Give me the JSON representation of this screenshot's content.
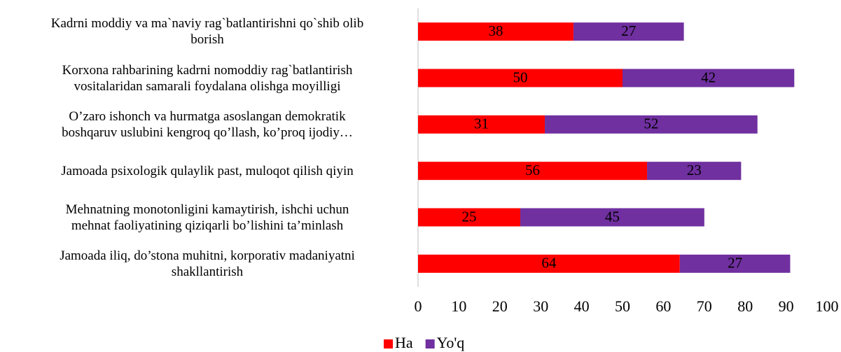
{
  "chart_data": {
    "type": "bar",
    "orientation": "horizontal",
    "stacked": true,
    "categories": [
      "Kadrni moddiy va ma`naviy rag`batlantirishni qo`shib olib\nborish",
      "Korxona rahbarining kadrni nomoddiy rag`batlantirish\nvositalaridan samarali foydalana olishga moyilligi",
      "O’zaro ishonch va hurmatga asoslangan demokratik\nboshqaruv uslubini kengroq qo’llash, ko’proq ijodiy…",
      "Jamoada psixologik qulaylik past, muloqot qilish qiyin",
      "Mehnatning monotonligini kamaytirish, ishchi uchun\nmehnat faoliyatining  qiziqarli bo’lishini ta’minlash",
      "Jamoada iliq, do’stona muhitni, korporativ madaniyatni\nshakllantirish"
    ],
    "series": [
      {
        "name": "Ha",
        "color": "#ff0000",
        "values": [
          38,
          50,
          31,
          56,
          25,
          64
        ]
      },
      {
        "name": "Yo'q",
        "color": "#7030a0",
        "values": [
          27,
          42,
          52,
          23,
          45,
          27
        ]
      }
    ],
    "xlim": [
      0,
      100
    ],
    "xticks": [
      0,
      10,
      20,
      30,
      40,
      50,
      60,
      70,
      80,
      90,
      100
    ],
    "legend": "bottom",
    "grid": false
  }
}
